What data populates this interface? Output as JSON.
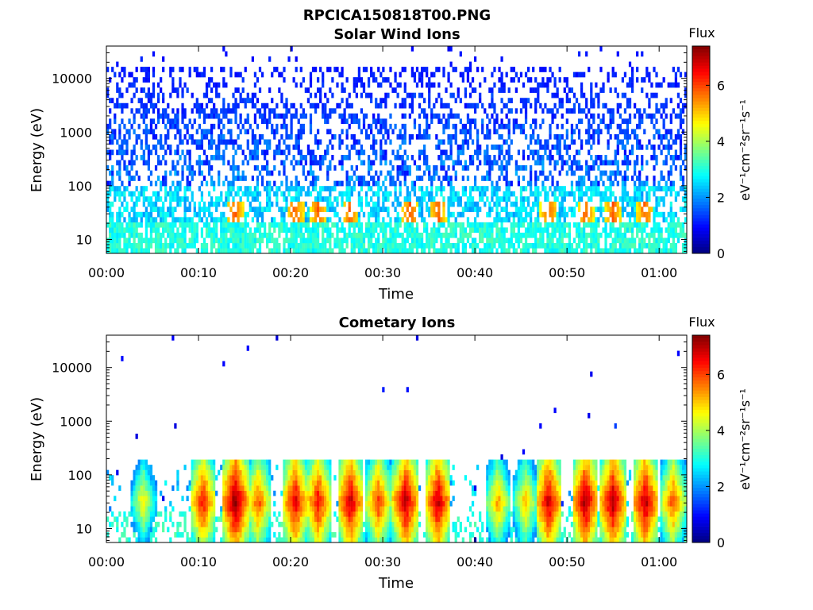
{
  "figure": {
    "title": "RPCICA150818T00.PNG"
  },
  "chart_data": [
    {
      "type": "heatmap",
      "title": "Solar Wind Ions",
      "xlabel": "Time",
      "ylabel": "Energy (eV)",
      "y_scale": "log",
      "xlim_minutes": [
        0,
        63
      ],
      "ylim": [
        5.5,
        40000
      ],
      "xticks": [
        "00:00",
        "00:10",
        "00:20",
        "00:30",
        "00:40",
        "00:50",
        "01:00"
      ],
      "xtick_minutes": [
        0,
        10,
        20,
        30,
        40,
        50,
        60
      ],
      "yticks": [
        10,
        100,
        1000,
        10000
      ],
      "ytick_labels": [
        "10",
        "100",
        "1000",
        "10000"
      ],
      "colorbar": {
        "label": "Flux",
        "units": "eV⁻¹cm⁻²sr⁻¹s⁻¹",
        "range": [
          0,
          7.4
        ],
        "ticks": [
          0,
          2,
          4,
          6
        ],
        "tick_labels": [
          "0",
          "2",
          "4",
          "6"
        ],
        "colormap": "jet"
      },
      "description_of_features": {
        "background_flux_range": [
          0.8,
          3.2
        ],
        "hotspot_energy_eV": 30,
        "hotspot_minutes": [
          14,
          20.5,
          23,
          26.5,
          33,
          36,
          48,
          52,
          55,
          58.5
        ]
      }
    },
    {
      "type": "heatmap",
      "title": "Cometary Ions",
      "xlabel": "Time",
      "ylabel": "Energy (eV)",
      "y_scale": "log",
      "xlim_minutes": [
        0,
        63
      ],
      "ylim": [
        5.5,
        40000
      ],
      "xticks": [
        "00:00",
        "00:10",
        "00:20",
        "00:30",
        "00:40",
        "00:50",
        "01:00"
      ],
      "xtick_minutes": [
        0,
        10,
        20,
        30,
        40,
        50,
        60
      ],
      "yticks": [
        10,
        100,
        1000,
        10000
      ],
      "ytick_labels": [
        "10",
        "100",
        "1000",
        "10000"
      ],
      "colorbar": {
        "label": "Flux",
        "units": "eV⁻¹cm⁻²sr⁻¹s⁻¹",
        "range": [
          0,
          7.4
        ],
        "ticks": [
          0,
          2,
          4,
          6
        ],
        "tick_labels": [
          "0",
          "2",
          "4",
          "6"
        ],
        "colormap": "jet"
      },
      "description_of_features": {
        "band_energy_eV": [
          6,
          200
        ],
        "bursts": [
          {
            "minute": 4,
            "peak": 4.6
          },
          {
            "minute": 10.5,
            "peak": 6.3
          },
          {
            "minute": 14,
            "peak": 7.2
          },
          {
            "minute": 16.5,
            "peak": 5.8
          },
          {
            "minute": 20.5,
            "peak": 6.6
          },
          {
            "minute": 23,
            "peak": 6.4
          },
          {
            "minute": 26.5,
            "peak": 6.8
          },
          {
            "minute": 29.5,
            "peak": 6.0
          },
          {
            "minute": 32.5,
            "peak": 6.9
          },
          {
            "minute": 36,
            "peak": 6.8
          },
          {
            "minute": 42.5,
            "peak": 5.2
          },
          {
            "minute": 45.5,
            "peak": 5.0
          },
          {
            "minute": 48,
            "peak": 6.8
          },
          {
            "minute": 52,
            "peak": 7.0
          },
          {
            "minute": 55,
            "peak": 7.0
          },
          {
            "minute": 58.5,
            "peak": 6.9
          },
          {
            "minute": 61.5,
            "peak": 5.8
          }
        ]
      }
    }
  ]
}
